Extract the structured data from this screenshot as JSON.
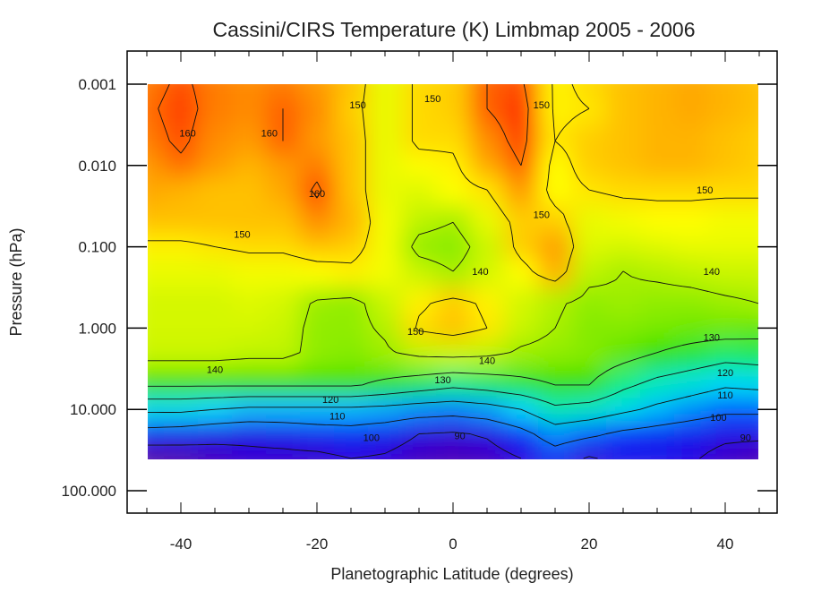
{
  "chart_data": {
    "type": "heatmap",
    "title": "Cassini/CIRS Temperature (K) Limbmap 2005 - 2006",
    "xlabel": "Planetographic Latitude (degrees)",
    "ylabel": "Pressure (hPa)",
    "xlim": [
      -48,
      47.5
    ],
    "ylim": [
      0.0004,
      190
    ],
    "y_scale": "log",
    "y_inverted": true,
    "grid": false,
    "x_ticks": [
      {
        "value": -40,
        "label": "-40"
      },
      {
        "value": -20,
        "label": "-20"
      },
      {
        "value": 0,
        "label": "0"
      },
      {
        "value": 20,
        "label": "20"
      },
      {
        "value": 40,
        "label": "40"
      }
    ],
    "y_ticks": [
      {
        "value": 0.001,
        "label": "0.001"
      },
      {
        "value": 0.01,
        "label": "0.010"
      },
      {
        "value": 0.1,
        "label": "0.100"
      },
      {
        "value": 1,
        "label": "1.000"
      },
      {
        "value": 10,
        "label": "10.000"
      },
      {
        "value": 100,
        "label": "100.000"
      }
    ],
    "latitudes": [
      -45,
      -40,
      -35,
      -30,
      -25,
      -20,
      -15,
      -10,
      -5,
      0,
      5,
      10,
      15,
      20,
      25,
      30,
      35,
      40,
      45
    ],
    "pressures": [
      0.001,
      0.002,
      0.005,
      0.01,
      0.02,
      0.05,
      0.1,
      0.2,
      0.5,
      1,
      2,
      5,
      10,
      20,
      40
    ],
    "temperature": [
      [
        158,
        161,
        158,
        157,
        158,
        156,
        153,
        146,
        151,
        152,
        160,
        161,
        149,
        151,
        153,
        154,
        155,
        154,
        153
      ],
      [
        159,
        162,
        158,
        157,
        160,
        157,
        152,
        146,
        151,
        152,
        160,
        163,
        149,
        150,
        153,
        154,
        155,
        154,
        153
      ],
      [
        158,
        161,
        157,
        156,
        160,
        156,
        153,
        146,
        151,
        151,
        157,
        162,
        150,
        152,
        153,
        154,
        154,
        153,
        152
      ],
      [
        156,
        159,
        156,
        154,
        156,
        158,
        153,
        146,
        148,
        149,
        155,
        160,
        148,
        152,
        153,
        154,
        154,
        153,
        152
      ],
      [
        155,
        154,
        153,
        153,
        155,
        161,
        153,
        146,
        145,
        148,
        150,
        156,
        148,
        150,
        151,
        151,
        151,
        151,
        151
      ],
      [
        153,
        153,
        153,
        153,
        153,
        157,
        154,
        147,
        142,
        140,
        146,
        152,
        152,
        146,
        147,
        148,
        148,
        147,
        147
      ],
      [
        149,
        149,
        150,
        151,
        151,
        153,
        152,
        147,
        138,
        137,
        143,
        152,
        156,
        145,
        144,
        145,
        146,
        146,
        146
      ],
      [
        146,
        146,
        146,
        147,
        147,
        148,
        149,
        147,
        143,
        140,
        144,
        148,
        154,
        142,
        140,
        141,
        142,
        143,
        143
      ],
      [
        144,
        144,
        144,
        145,
        144,
        139,
        138,
        143,
        149,
        152,
        149,
        144,
        141,
        138,
        139,
        138,
        138,
        139,
        140
      ],
      [
        144,
        144,
        144,
        144,
        143,
        138,
        138,
        141,
        151,
        153,
        150,
        143,
        140,
        137,
        137,
        136,
        135,
        135,
        134
      ],
      [
        143,
        143,
        143,
        142,
        142,
        138,
        137,
        139,
        142,
        143,
        142,
        139,
        138,
        137,
        134,
        130,
        127,
        124,
        125
      ],
      [
        131,
        131,
        131,
        131,
        131,
        131,
        131,
        128,
        125,
        122,
        124,
        127,
        130,
        130,
        122,
        117,
        114,
        111,
        112
      ],
      [
        112,
        112,
        110,
        108,
        108,
        108,
        108,
        107,
        105,
        104,
        106,
        110,
        118,
        116,
        112,
        108,
        105,
        102,
        102
      ],
      [
        96,
        95,
        93,
        92,
        93,
        95,
        96,
        94,
        90,
        89,
        91,
        97,
        105,
        102,
        98,
        96,
        94,
        92,
        92
      ],
      [
        83,
        84,
        86,
        88,
        88,
        88,
        90,
        89,
        86,
        85,
        86,
        90,
        95,
        89,
        93,
        93,
        91,
        87,
        85
      ]
    ],
    "contour_levels": [
      90,
      100,
      110,
      120,
      130,
      140,
      150,
      160
    ],
    "colorscale": [
      {
        "t": 82,
        "color": "#5a0aa0"
      },
      {
        "t": 90,
        "color": "#2a00e0"
      },
      {
        "t": 100,
        "color": "#0040ff"
      },
      {
        "t": 110,
        "color": "#00d8ff"
      },
      {
        "t": 120,
        "color": "#00f0a0"
      },
      {
        "t": 130,
        "color": "#30e000"
      },
      {
        "t": 140,
        "color": "#a8f000"
      },
      {
        "t": 148,
        "color": "#ffff00"
      },
      {
        "t": 155,
        "color": "#ffa800"
      },
      {
        "t": 160,
        "color": "#ff6000"
      },
      {
        "t": 165,
        "color": "#ff1000"
      }
    ]
  }
}
